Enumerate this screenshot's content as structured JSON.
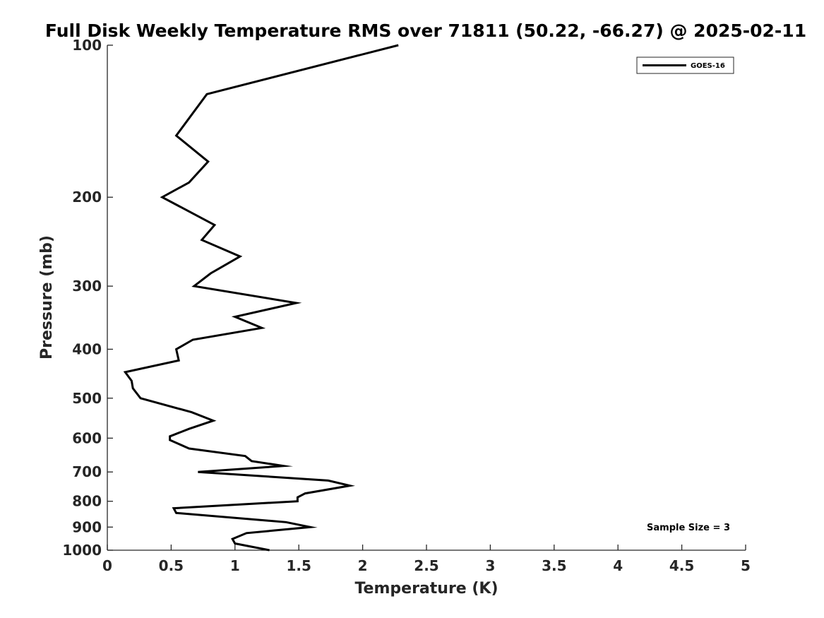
{
  "chart_data": {
    "type": "line",
    "title": "Full Disk Weekly Temperature RMS over 71811 (50.22, -66.27) @ 2025-02-11",
    "xlabel": "Temperature (K)",
    "ylabel": "Pressure (mb)",
    "xlim": [
      0,
      5
    ],
    "ylim": [
      100,
      1000
    ],
    "yscale": "log",
    "y_reversed": true,
    "xticks": [
      "0",
      "0.5",
      "1",
      "1.5",
      "2",
      "2.5",
      "3",
      "3.5",
      "4",
      "4.5",
      "5"
    ],
    "yticks": [
      "100",
      "200",
      "300",
      "400",
      "500",
      "600",
      "700",
      "800",
      "900",
      "1000"
    ],
    "grid": false,
    "legend": {
      "position": "top-right"
    },
    "annotation": "Sample Size = 3",
    "series": [
      {
        "name": "GOES-16",
        "color": "#000000",
        "points": [
          [
            2.28,
            100
          ],
          [
            0.78,
            125
          ],
          [
            0.54,
            151
          ],
          [
            0.79,
            170
          ],
          [
            0.64,
            187
          ],
          [
            0.43,
            200
          ],
          [
            0.84,
            227
          ],
          [
            0.74,
            243
          ],
          [
            1.04,
            262
          ],
          [
            0.81,
            283
          ],
          [
            0.68,
            300
          ],
          [
            1.48,
            324
          ],
          [
            1.0,
            345
          ],
          [
            1.21,
            363
          ],
          [
            0.67,
            383
          ],
          [
            0.54,
            400
          ],
          [
            0.56,
            421
          ],
          [
            0.14,
            444
          ],
          [
            0.19,
            462
          ],
          [
            0.2,
            478
          ],
          [
            0.26,
            500
          ],
          [
            0.66,
            533
          ],
          [
            0.83,
            554
          ],
          [
            0.64,
            575
          ],
          [
            0.49,
            595
          ],
          [
            0.49,
            605
          ],
          [
            0.64,
            629
          ],
          [
            1.08,
            651
          ],
          [
            1.13,
            666
          ],
          [
            1.38,
            681
          ],
          [
            0.71,
            700
          ],
          [
            1.73,
            728
          ],
          [
            1.9,
            745
          ],
          [
            1.55,
            772
          ],
          [
            1.49,
            786
          ],
          [
            1.49,
            800
          ],
          [
            0.52,
            826
          ],
          [
            0.54,
            844
          ],
          [
            1.4,
            880
          ],
          [
            1.59,
            900
          ],
          [
            1.09,
            925
          ],
          [
            0.98,
            950
          ],
          [
            1.0,
            970
          ],
          [
            1.27,
            1000
          ]
        ]
      }
    ]
  }
}
